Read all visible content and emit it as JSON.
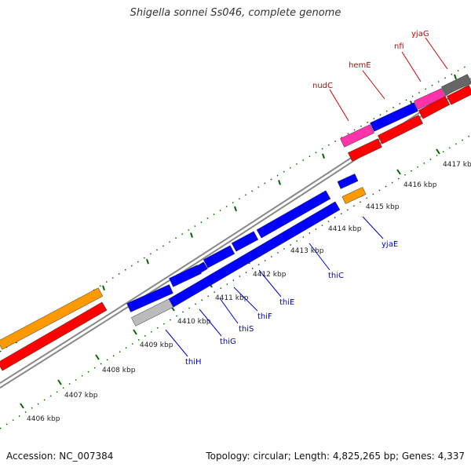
{
  "title": "Shigella sonnei Ss046, complete genome",
  "footer": {
    "accession": "Accession: NC_007384",
    "summary": "Topology: circular; Length: 4,825,265 bp; Genes: 4,337"
  },
  "scale_unit": "kbp",
  "scale_ticks": [
    "4406 kbp",
    "4407 kbp",
    "4408 kbp",
    "4409 kbp",
    "4410 kbp",
    "4411 kbp",
    "4412 kbp",
    "4413 kbp",
    "4414 kbp",
    "4415 kbp",
    "4416 kbp",
    "4417 kbp"
  ],
  "gene_labels": [
    "thiH",
    "thiG",
    "thiS",
    "thiF",
    "thiE",
    "thiC",
    "yjaE",
    "nudC",
    "hemE",
    "nfi",
    "yjaG"
  ],
  "colors": {
    "cds_red": "#ff0000",
    "cds_blue": "#0000ff",
    "cds_orange": "#ff9900",
    "cds_pink": "#ff33aa",
    "cds_gray": "#666666",
    "cds_lightgray": "#bbbbbb",
    "tick_green": "#006600",
    "label_blue": "#0000cc",
    "label_red": "#cc0000",
    "backbone": "#888888"
  }
}
